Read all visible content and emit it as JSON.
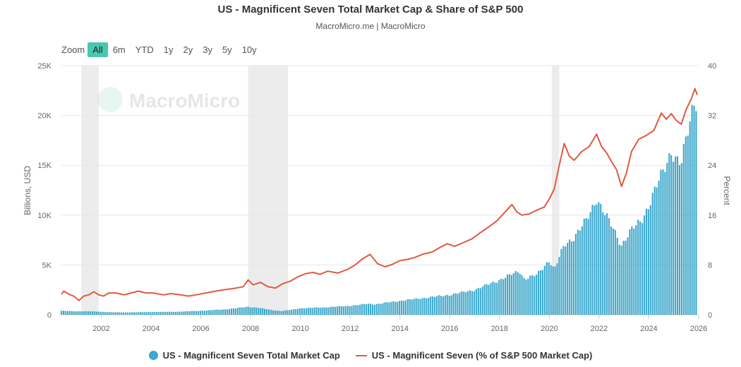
{
  "title": "US - Magnificent Seven Total Market Cap & Share of S&P 500",
  "subtitle": "MacroMicro.me | MacroMicro",
  "watermark": "MacroMicro",
  "zoom": {
    "label": "Zoom",
    "buttons": [
      "All",
      "6m",
      "YTD",
      "1y",
      "2y",
      "3y",
      "5y",
      "10y"
    ],
    "active": "All"
  },
  "colors": {
    "bar": "#3ca8cc",
    "line": "#e05a3f",
    "recession": "#ececec",
    "grid": "#e6e6e6",
    "active_zoom": "#47c9b0"
  },
  "chart_data": {
    "type": "bar+line",
    "x_range": [
      2000.4,
      2026.0
    ],
    "x_ticks": [
      "2002",
      "2004",
      "2006",
      "2008",
      "2010",
      "2012",
      "2014",
      "2016",
      "2018",
      "2020",
      "2022",
      "2024",
      "2026"
    ],
    "left_axis": {
      "label": "Billions, USD",
      "range": [
        0,
        25000
      ],
      "ticks": [
        "0",
        "5K",
        "10K",
        "15K",
        "20K",
        "25K"
      ]
    },
    "right_axis": {
      "label": "Percent",
      "range": [
        0,
        40
      ],
      "ticks": [
        "0",
        "8",
        "16",
        "24",
        "32",
        "40"
      ]
    },
    "recessions": [
      [
        2001.2,
        2001.9
      ],
      [
        2007.9,
        2009.5
      ],
      [
        2020.1,
        2020.4
      ]
    ],
    "series": [
      {
        "name": "US - Magnificent Seven Total Market Cap",
        "type": "bar",
        "axis": "left",
        "points": [
          [
            2000.4,
            400
          ],
          [
            2001.0,
            350
          ],
          [
            2001.5,
            350
          ],
          [
            2002.0,
            300
          ],
          [
            2002.5,
            250
          ],
          [
            2003.0,
            240
          ],
          [
            2003.5,
            260
          ],
          [
            2004.0,
            280
          ],
          [
            2005.0,
            300
          ],
          [
            2006.0,
            400
          ],
          [
            2007.0,
            550
          ],
          [
            2007.9,
            800
          ],
          [
            2008.3,
            700
          ],
          [
            2008.8,
            500
          ],
          [
            2009.2,
            380
          ],
          [
            2009.5,
            450
          ],
          [
            2010.0,
            650
          ],
          [
            2011.0,
            750
          ],
          [
            2012.0,
            900
          ],
          [
            2012.7,
            1100
          ],
          [
            2013.0,
            1050
          ],
          [
            2014.0,
            1400
          ],
          [
            2015.0,
            1700
          ],
          [
            2016.0,
            2000
          ],
          [
            2017.0,
            2500
          ],
          [
            2018.0,
            3500
          ],
          [
            2018.8,
            4400
          ],
          [
            2019.0,
            3600
          ],
          [
            2019.5,
            4000
          ],
          [
            2020.0,
            5500
          ],
          [
            2020.2,
            4500
          ],
          [
            2020.6,
            7000
          ],
          [
            2021.0,
            7800
          ],
          [
            2021.5,
            9500
          ],
          [
            2021.9,
            11700
          ],
          [
            2022.3,
            9800
          ],
          [
            2022.6,
            8500
          ],
          [
            2022.9,
            7000
          ],
          [
            2023.3,
            8500
          ],
          [
            2023.7,
            9500
          ],
          [
            2024.0,
            11000
          ],
          [
            2024.5,
            14000
          ],
          [
            2024.9,
            16500
          ],
          [
            2025.1,
            15500
          ],
          [
            2025.3,
            15000
          ],
          [
            2025.6,
            19000
          ],
          [
            2025.8,
            21500
          ],
          [
            2025.95,
            21600
          ]
        ]
      },
      {
        "name": "US - Magnificent Seven (% of S&P 500 Market Cap)",
        "type": "line",
        "axis": "right",
        "points": [
          [
            2000.4,
            3.3
          ],
          [
            2000.5,
            3.8
          ],
          [
            2000.7,
            3.3
          ],
          [
            2000.9,
            3.0
          ],
          [
            2001.1,
            2.3
          ],
          [
            2001.3,
            3.0
          ],
          [
            2001.5,
            3.2
          ],
          [
            2001.7,
            3.7
          ],
          [
            2001.9,
            3.2
          ],
          [
            2002.1,
            3.0
          ],
          [
            2002.3,
            3.5
          ],
          [
            2002.6,
            3.5
          ],
          [
            2002.9,
            3.2
          ],
          [
            2003.2,
            3.5
          ],
          [
            2003.5,
            3.8
          ],
          [
            2003.8,
            3.5
          ],
          [
            2004.1,
            3.5
          ],
          [
            2004.5,
            3.2
          ],
          [
            2004.8,
            3.4
          ],
          [
            2005.2,
            3.2
          ],
          [
            2005.5,
            3.0
          ],
          [
            2005.8,
            3.2
          ],
          [
            2006.2,
            3.5
          ],
          [
            2006.6,
            3.8
          ],
          [
            2006.9,
            4.0
          ],
          [
            2007.3,
            4.2
          ],
          [
            2007.7,
            4.5
          ],
          [
            2007.9,
            5.6
          ],
          [
            2008.1,
            4.8
          ],
          [
            2008.4,
            5.2
          ],
          [
            2008.7,
            4.5
          ],
          [
            2009.0,
            4.3
          ],
          [
            2009.3,
            5.0
          ],
          [
            2009.6,
            5.4
          ],
          [
            2009.9,
            6.1
          ],
          [
            2010.2,
            6.6
          ],
          [
            2010.5,
            6.8
          ],
          [
            2010.8,
            6.5
          ],
          [
            2011.1,
            7.0
          ],
          [
            2011.5,
            6.7
          ],
          [
            2011.9,
            7.3
          ],
          [
            2012.2,
            8.0
          ],
          [
            2012.5,
            9.0
          ],
          [
            2012.8,
            9.7
          ],
          [
            2013.1,
            8.2
          ],
          [
            2013.4,
            7.7
          ],
          [
            2013.7,
            8.1
          ],
          [
            2014.0,
            8.7
          ],
          [
            2014.3,
            8.9
          ],
          [
            2014.6,
            9.2
          ],
          [
            2014.9,
            9.7
          ],
          [
            2015.3,
            10.1
          ],
          [
            2015.6,
            10.8
          ],
          [
            2015.9,
            11.4
          ],
          [
            2016.2,
            11.0
          ],
          [
            2016.5,
            11.5
          ],
          [
            2016.9,
            12.2
          ],
          [
            2017.2,
            13.1
          ],
          [
            2017.6,
            14.2
          ],
          [
            2017.9,
            15.1
          ],
          [
            2018.2,
            16.4
          ],
          [
            2018.5,
            17.7
          ],
          [
            2018.7,
            16.5
          ],
          [
            2018.9,
            16.0
          ],
          [
            2019.2,
            16.2
          ],
          [
            2019.5,
            16.8
          ],
          [
            2019.8,
            17.3
          ],
          [
            2020.0,
            18.6
          ],
          [
            2020.2,
            20.2
          ],
          [
            2020.4,
            24.0
          ],
          [
            2020.6,
            27.5
          ],
          [
            2020.8,
            25.5
          ],
          [
            2021.0,
            24.8
          ],
          [
            2021.3,
            26.2
          ],
          [
            2021.6,
            27.0
          ],
          [
            2021.9,
            29.0
          ],
          [
            2022.1,
            27.0
          ],
          [
            2022.3,
            26.0
          ],
          [
            2022.5,
            24.6
          ],
          [
            2022.7,
            23.3
          ],
          [
            2022.9,
            20.6
          ],
          [
            2023.1,
            22.8
          ],
          [
            2023.3,
            26.2
          ],
          [
            2023.6,
            28.2
          ],
          [
            2023.9,
            28.8
          ],
          [
            2024.2,
            29.6
          ],
          [
            2024.5,
            32.4
          ],
          [
            2024.7,
            31.4
          ],
          [
            2024.9,
            32.3
          ],
          [
            2025.1,
            31.2
          ],
          [
            2025.3,
            30.6
          ],
          [
            2025.5,
            33.0
          ],
          [
            2025.7,
            34.6
          ],
          [
            2025.85,
            36.3
          ],
          [
            2025.95,
            35.3
          ]
        ]
      }
    ]
  },
  "legend": {
    "bar_label": "US - Magnificent Seven Total Market Cap",
    "line_label": "US - Magnificent Seven (% of S&P 500 Market Cap)"
  }
}
